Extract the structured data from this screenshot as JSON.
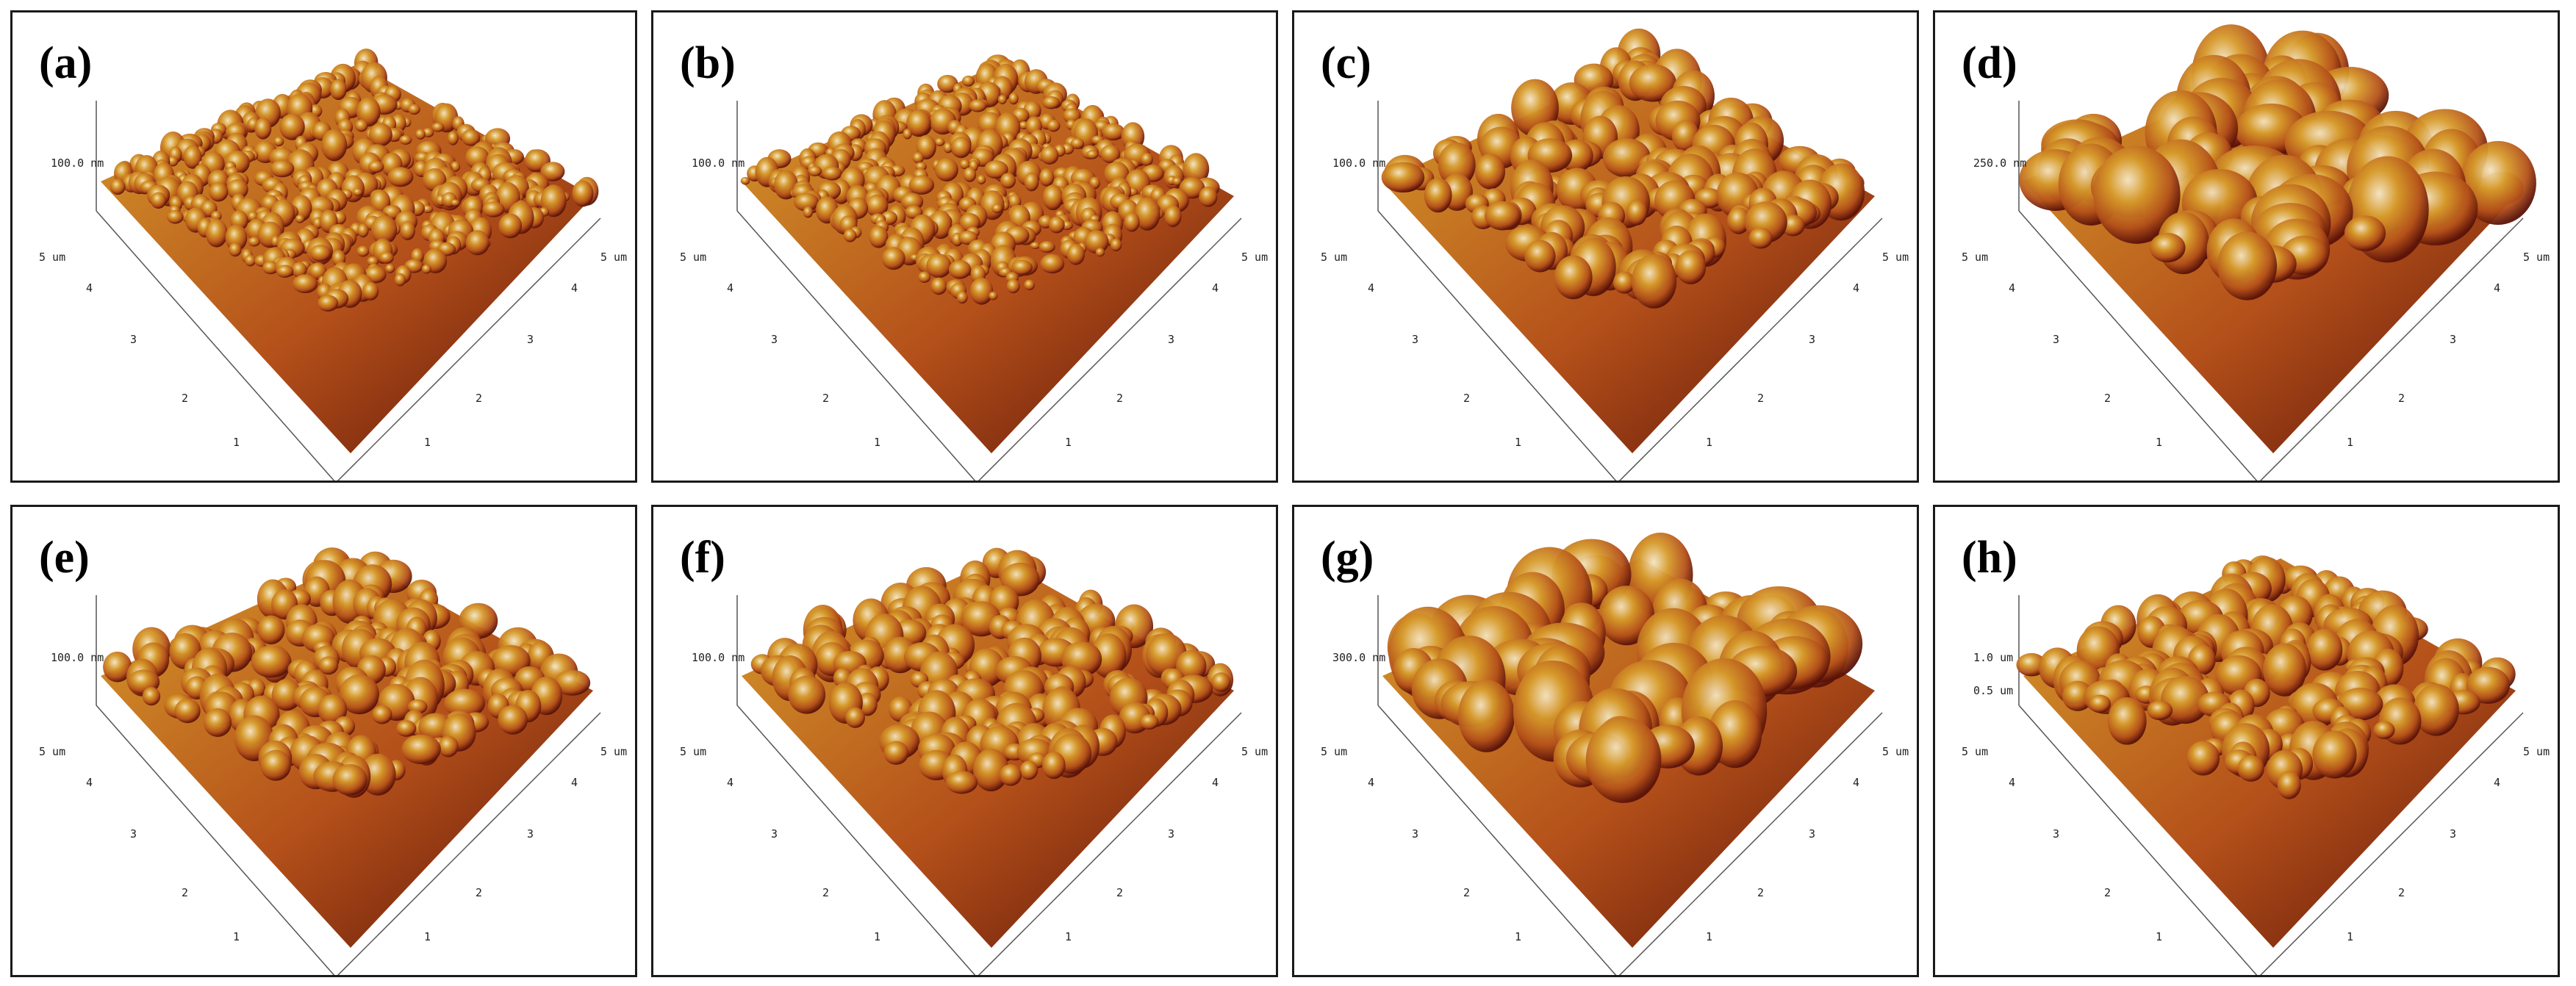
{
  "panels": [
    {
      "label": "(a)",
      "z_label": "100.0 nm",
      "x_label": "5 um",
      "y_label": "5 um",
      "ticks_left": [
        "4",
        "3",
        "2",
        "1"
      ],
      "ticks_right": [
        "4",
        "3",
        "2",
        "1"
      ],
      "surface": "fine",
      "seed": 3
    },
    {
      "label": "(b)",
      "z_label": "100.0 nm",
      "x_label": "5 um",
      "y_label": "5 um",
      "ticks_left": [
        "4",
        "3",
        "2",
        "1"
      ],
      "ticks_right": [
        "4",
        "3",
        "2",
        "1"
      ],
      "surface": "fine",
      "seed": 7
    },
    {
      "label": "(c)",
      "z_label": "100.0 nm",
      "x_label": "5 um",
      "y_label": "5 um",
      "ticks_left": [
        "4",
        "3",
        "2",
        "1"
      ],
      "ticks_right": [
        "4",
        "3",
        "2",
        "1"
      ],
      "surface": "medium",
      "seed": 11
    },
    {
      "label": "(d)",
      "z_label": "250.0 nm",
      "x_label": "5 um",
      "y_label": "5 um",
      "ticks_left": [
        "4",
        "3",
        "2",
        "1"
      ],
      "ticks_right": [
        "4",
        "3",
        "2",
        "1"
      ],
      "surface": "coarse",
      "seed": 19
    },
    {
      "label": "(e)",
      "z_label": "100.0 nm",
      "x_label": "5 um",
      "y_label": "5 um",
      "ticks_left": [
        "4",
        "3",
        "2",
        "1"
      ],
      "ticks_right": [
        "4",
        "3",
        "2",
        "1"
      ],
      "surface": "bumpy",
      "seed": 23
    },
    {
      "label": "(f)",
      "z_label": "100.0 nm",
      "x_label": "5 um",
      "y_label": "5 um",
      "ticks_left": [
        "4",
        "3",
        "2",
        "1"
      ],
      "ticks_right": [
        "4",
        "3",
        "2",
        "1"
      ],
      "surface": "bumpy",
      "seed": 29
    },
    {
      "label": "(g)",
      "z_label": "300.0 nm",
      "x_label": "5 um",
      "y_label": "5 um",
      "ticks_left": [
        "4",
        "3",
        "2",
        "1"
      ],
      "ticks_right": [
        "4",
        "3",
        "2",
        "1"
      ],
      "surface": "coarse",
      "seed": 31
    },
    {
      "label": "(h)",
      "z_label": "1.0 um",
      "z_label_2": "0.5 um",
      "x_label": "5 um",
      "y_label": "5 um",
      "ticks_left": [
        "4",
        "3",
        "2",
        "1"
      ],
      "ticks_right": [
        "4",
        "3",
        "2",
        "1"
      ],
      "surface": "medium",
      "seed": 37
    }
  ],
  "colors": {
    "dark": "#5a1208",
    "mid": "#b4501a",
    "gold": "#d69a2a",
    "highlight": "#f3e4c4",
    "axis": "#555555"
  }
}
